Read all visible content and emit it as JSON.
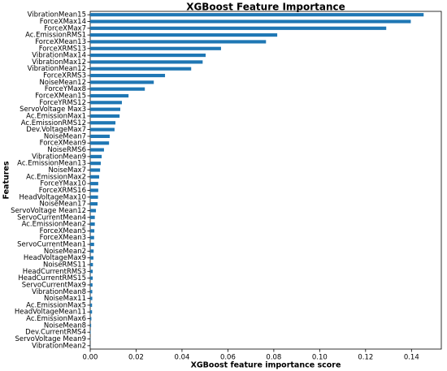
{
  "chart_data": {
    "type": "barh",
    "title": "XGBoost Feature Importance",
    "xlabel": "XGBoost feature importance score",
    "ylabel": "Features",
    "color": "#1f77b4",
    "categories": [
      "VibrationMean15",
      "ForceXMax14",
      "ForceXMax7",
      "Ac.EmissionRMS1",
      "ForceXMean13",
      "ForceXRMS13",
      "VibrationMax14",
      "VibrationMax12",
      "VibrationMean12",
      "ForceXRMS3",
      "NoiseMean12",
      "ForceYMax8",
      "ForceXMean15",
      "ForceYRMS12",
      "ServoVoltage Max3",
      "Ac.EmissionMax1",
      "Ac.EmissionRMS12",
      "Dev.VoltageMax7",
      "NoiseMean7",
      "ForceXMean9",
      "NoiseRMS6",
      "VibrationMean9",
      "Ac.EmissionMean13",
      "NoiseMax7",
      "Ac.EmissionMax2",
      "ForceYMax10",
      "ForceXRMS16",
      "HeadVoltageMax10",
      "NoiseMean17",
      "ServoVoltage Mean12",
      "ServoCurrentMean4",
      "Ac.EmissionMean2",
      "ForceXMean5",
      "ForceXMean3",
      "ServoCurrentMean1",
      "NoiseMean2",
      "HeadVoltageMax9",
      "NoiseRMS11",
      "HeadCurrentRMS3",
      "HeadCurrentRMS15",
      "ServoCurrentMax9",
      "VibrationMean8",
      "NoiseMax11",
      "Ac.EmissionMax5",
      "HeadVoltageMean11",
      "Ac.EmissionMax6",
      "NoiseMean8",
      "Dev.CurrentRMS4",
      "ServoVoltage Mean9",
      "VibrationMean2"
    ],
    "values": [
      0.1453,
      0.1397,
      0.129,
      0.0815,
      0.0766,
      0.057,
      0.0503,
      0.049,
      0.044,
      0.0326,
      0.0277,
      0.0238,
      0.0167,
      0.0138,
      0.0131,
      0.0128,
      0.011,
      0.0106,
      0.0085,
      0.0082,
      0.006,
      0.005,
      0.0046,
      0.0043,
      0.0039,
      0.0035,
      0.0035,
      0.0034,
      0.0032,
      0.0025,
      0.002,
      0.002,
      0.0018,
      0.0017,
      0.0017,
      0.0015,
      0.0014,
      0.0012,
      0.0011,
      0.0011,
      0.001,
      0.0009,
      0.0009,
      0.0008,
      0.0008,
      0.0005,
      0.0004,
      0.0002,
      0.0001,
      5e-05
    ],
    "xlim": [
      0,
      0.153
    ],
    "xticks": [
      {
        "value": 0,
        "label": "0.00"
      },
      0.02,
      0.04,
      0.06,
      0.08,
      {
        "value": 0.1,
        "label": "0.10"
      },
      0.12,
      0.14
    ]
  }
}
